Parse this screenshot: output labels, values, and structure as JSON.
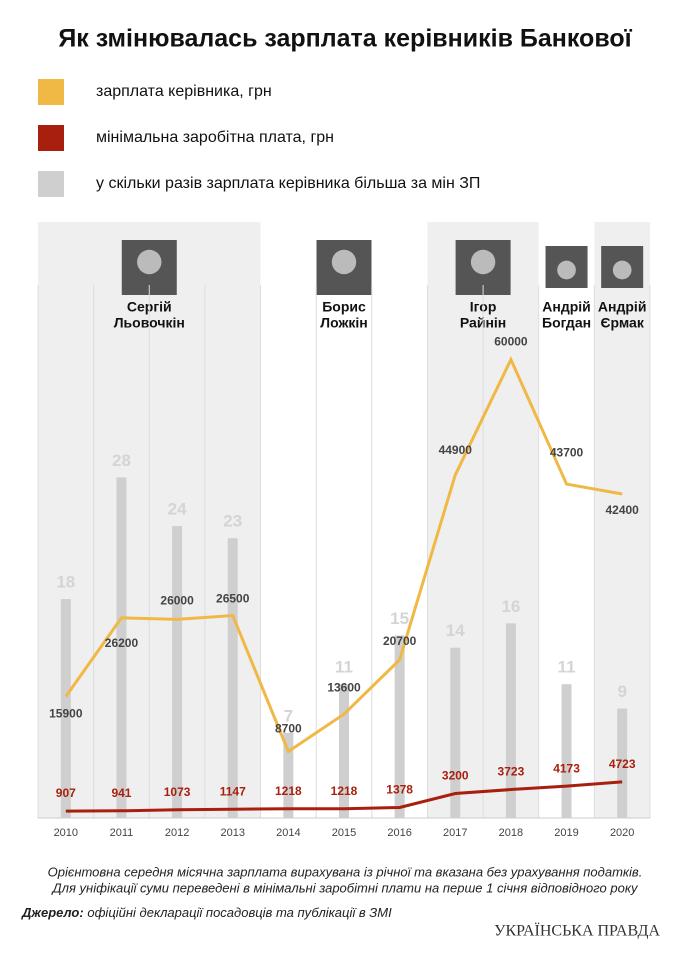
{
  "chart_data": {
    "type": "line",
    "title": "Як змінювалась зарплата керівників Банкової",
    "categories": [
      "2010",
      "2011",
      "2012",
      "2013",
      "2014",
      "2015",
      "2016",
      "2017",
      "2018",
      "2019",
      "2020"
    ],
    "series": [
      {
        "name": "зарплата керівника, грн",
        "color": "#f0b845",
        "values": [
          15900,
          26200,
          26000,
          26500,
          8700,
          13600,
          20700,
          44900,
          60000,
          43700,
          42400
        ]
      },
      {
        "name": "мінімальна заробітна плата, грн",
        "color": "#a8200d",
        "values": [
          907,
          941,
          1073,
          1147,
          1218,
          1218,
          1378,
          3200,
          3723,
          4173,
          4723
        ]
      },
      {
        "name": "у скільки разів зарплата керівника більша за мін ЗП",
        "color": "#cfcfcf",
        "axis": "y2",
        "values": [
          18,
          28,
          24,
          23,
          7,
          11,
          15,
          14,
          16,
          11,
          9
        ]
      }
    ],
    "ylim": [
      0,
      78000
    ],
    "y2lim": [
      0,
      49
    ],
    "leaders": [
      [
        "Сергій",
        "Льовочкін"
      ],
      [
        "Борис",
        "Ложкін"
      ],
      [
        "Ігор",
        "Райнін"
      ],
      [
        "Андрій",
        "Богдан"
      ],
      [
        "Андрій",
        "Єрмак"
      ]
    ],
    "footnote": [
      "Орієнтовна середня місячна зарплата вирахувана із річної та вказана без урахування податків.",
      "Для уніфікації суми переведені в мінімальні заробітні плати на перше 1 січня відповідного року"
    ],
    "source_label": "Джерело:",
    "source": "офіційні декларації посадовців та публікації в ЗМІ",
    "logo": "УКРАЇНСЬКА ПРАВДА"
  }
}
